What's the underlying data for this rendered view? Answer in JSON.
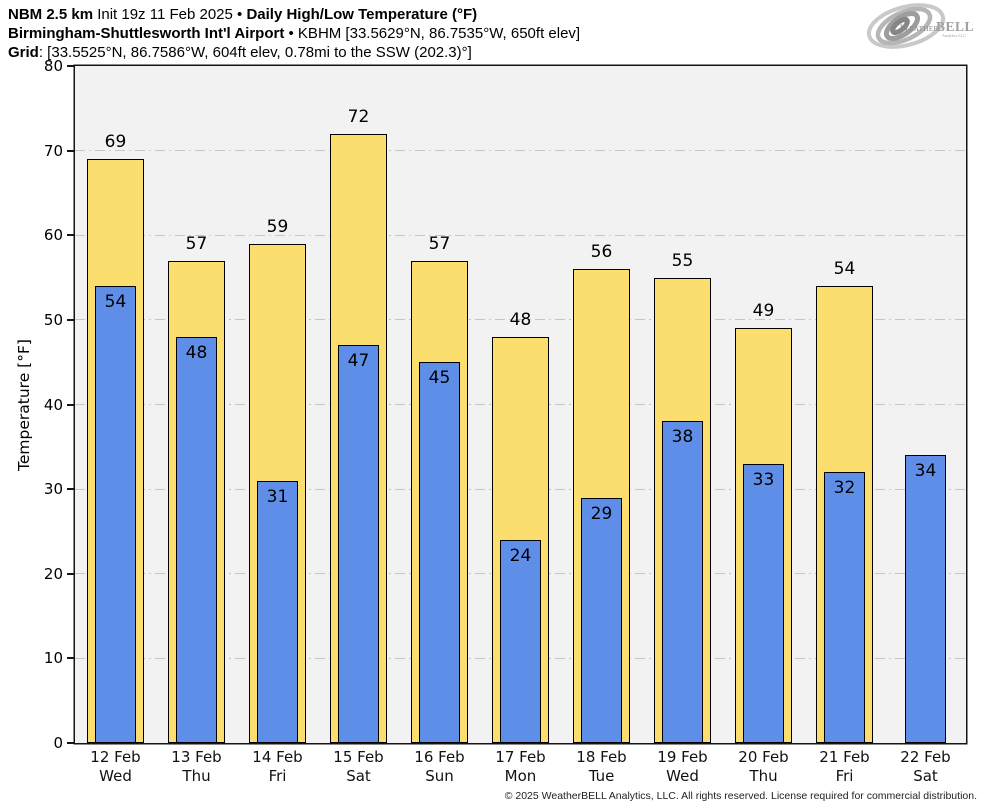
{
  "header": {
    "line1": {
      "model": "NBM 2.5 km",
      "init": " Init 19z 11 Feb 2025 • ",
      "title": "Daily High/Low Temperature (°F)"
    },
    "line2": {
      "station": "Birmingham-Shuttlesworth Int'l Airport",
      "details": " • KBHM [33.5629°N, 86.7535°W, 650ft elev]"
    },
    "line3": {
      "label": "Grid",
      "details": ": [33.5525°N, 86.7586°W, 604ft elev, 0.78mi to the SSW (202.3)°]"
    }
  },
  "logo": {
    "brand_weather": "Weather",
    "brand_bell": "BELL",
    "subtext": "Analytics LLC"
  },
  "chart_data": {
    "type": "bar",
    "title": "Daily High/Low Temperature (°F)",
    "ylabel": "Temperature [°F]",
    "ylim": [
      0,
      80
    ],
    "yticks": [
      0,
      10,
      20,
      30,
      40,
      50,
      60,
      70,
      80
    ],
    "grid": "dash-dot horizontal",
    "plot_background": "#f2f2f2",
    "categories": [
      {
        "date": "12 Feb",
        "weekday": "Wed"
      },
      {
        "date": "13 Feb",
        "weekday": "Thu"
      },
      {
        "date": "14 Feb",
        "weekday": "Fri"
      },
      {
        "date": "15 Feb",
        "weekday": "Sat"
      },
      {
        "date": "16 Feb",
        "weekday": "Sun"
      },
      {
        "date": "17 Feb",
        "weekday": "Mon"
      },
      {
        "date": "18 Feb",
        "weekday": "Tue"
      },
      {
        "date": "19 Feb",
        "weekday": "Wed"
      },
      {
        "date": "20 Feb",
        "weekday": "Thu"
      },
      {
        "date": "21 Feb",
        "weekday": "Fri"
      },
      {
        "date": "22 Feb",
        "weekday": "Sat"
      }
    ],
    "series": [
      {
        "name": "High",
        "color": "#FBDE6E",
        "values": [
          69,
          57,
          59,
          72,
          57,
          48,
          56,
          55,
          49,
          54,
          null
        ]
      },
      {
        "name": "Low",
        "color": "#5F8EE9",
        "values": [
          54,
          48,
          31,
          47,
          45,
          24,
          29,
          38,
          33,
          32,
          34
        ]
      }
    ]
  },
  "footer": {
    "copyright": "© 2025 WeatherBELL Analytics, LLC. All rights reserved. License required for commercial distribution."
  }
}
